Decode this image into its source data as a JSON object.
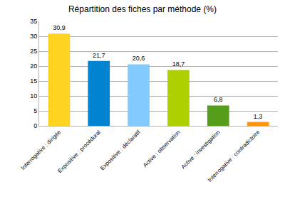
{
  "chart_data": {
    "type": "bar",
    "title": "Répartition des fiches par méthode (%)",
    "categories": [
      "Interrogative : dirigée",
      "Expositive : procédural",
      "Expositive : déclaratif",
      "Active : observation",
      "Active : investigation",
      "Interrogative : contradictoire"
    ],
    "values": [
      30.9,
      21.7,
      20.6,
      18.7,
      6.8,
      1.3
    ],
    "value_labels": [
      "30,9",
      "21,7",
      "20,6",
      "18,7",
      "6,8",
      "1,3"
    ],
    "colors": [
      "#ffd320",
      "#0084d1",
      "#83caff",
      "#aecf00",
      "#579d1c",
      "#ff950e"
    ],
    "ylim": [
      0,
      35
    ],
    "yticks": [
      0,
      5,
      10,
      15,
      20,
      25,
      30,
      35
    ],
    "grid": true,
    "data_labels": true
  }
}
